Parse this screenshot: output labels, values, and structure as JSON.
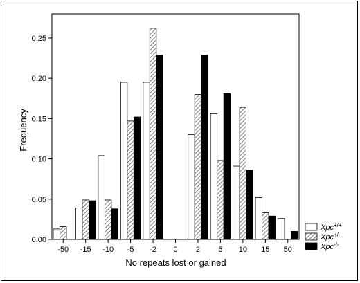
{
  "chart_data": {
    "type": "bar",
    "categories": [
      "-50",
      "-15",
      "-10",
      "-5",
      "-2",
      "0",
      "2",
      "5",
      "10",
      "15",
      "50"
    ],
    "series": [
      {
        "name": "Xpc+/+",
        "label_base": "Xpc",
        "label_sup": "+/+",
        "fill": "white",
        "values": [
          0.013,
          0.039,
          0.104,
          0.195,
          0.195,
          0,
          0.13,
          0.156,
          0.091,
          0.052,
          0.026
        ]
      },
      {
        "name": "Xpc+/-",
        "label_base": "Xpc",
        "label_sup": "+/-",
        "fill": "hatch",
        "values": [
          0.016,
          0.049,
          0.049,
          0.147,
          0.262,
          0,
          0.18,
          0.098,
          0.164,
          0.033,
          0
        ]
      },
      {
        "name": "Xpc-/-",
        "label_base": "Xpc",
        "label_sup": "-/-",
        "fill": "black",
        "values": [
          0,
          0.048,
          0.038,
          0.152,
          0.229,
          0,
          0.229,
          0.181,
          0.086,
          0.029,
          0.01
        ]
      }
    ],
    "xlabel": "No repeats lost or gained",
    "ylabel": "Frequency",
    "ylim": [
      0,
      0.28
    ],
    "yticks": [
      "0.00",
      "0.05",
      "0.10",
      "0.15",
      "0.20",
      "0.25"
    ],
    "legend_position": "right-bottom",
    "colors": {
      "black": "#000000",
      "white": "#ffffff",
      "hatch_stroke": "#555555"
    }
  }
}
